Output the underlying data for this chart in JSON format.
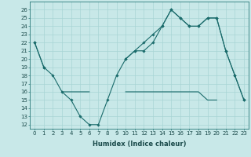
{
  "xlabel": "Humidex (Indice chaleur)",
  "bg_color": "#c8e8e8",
  "grid_color": "#a8d4d4",
  "line_color": "#1a6b6b",
  "x": [
    0,
    1,
    2,
    3,
    4,
    5,
    6,
    7,
    8,
    9,
    10,
    11,
    12,
    13,
    14,
    15,
    16,
    17,
    18,
    19,
    20,
    21,
    22,
    23
  ],
  "line1": [
    22,
    19,
    18,
    16,
    15,
    13,
    12,
    12,
    15,
    18,
    20,
    21,
    21,
    22,
    24,
    26,
    25,
    24,
    24,
    25,
    25,
    21,
    18,
    15
  ],
  "line2": [
    22,
    19,
    null,
    null,
    null,
    null,
    null,
    null,
    null,
    null,
    20,
    21,
    22,
    23,
    24,
    26,
    25,
    24,
    24,
    25,
    25,
    21,
    18,
    15
  ],
  "line3": [
    null,
    null,
    null,
    16,
    16,
    16,
    16,
    null,
    null,
    null,
    16,
    16,
    16,
    16,
    16,
    16,
    16,
    16,
    16,
    15,
    15,
    null,
    null,
    15
  ],
  "ylim_min": 11.5,
  "ylim_max": 27.0,
  "yticks": [
    12,
    13,
    14,
    15,
    16,
    17,
    18,
    19,
    20,
    21,
    22,
    23,
    24,
    25,
    26
  ],
  "xticks": [
    0,
    1,
    2,
    3,
    4,
    5,
    6,
    7,
    8,
    9,
    10,
    11,
    12,
    13,
    14,
    15,
    16,
    17,
    18,
    19,
    20,
    21,
    22,
    23
  ],
  "tick_fontsize": 5.0,
  "xlabel_fontsize": 6.0
}
